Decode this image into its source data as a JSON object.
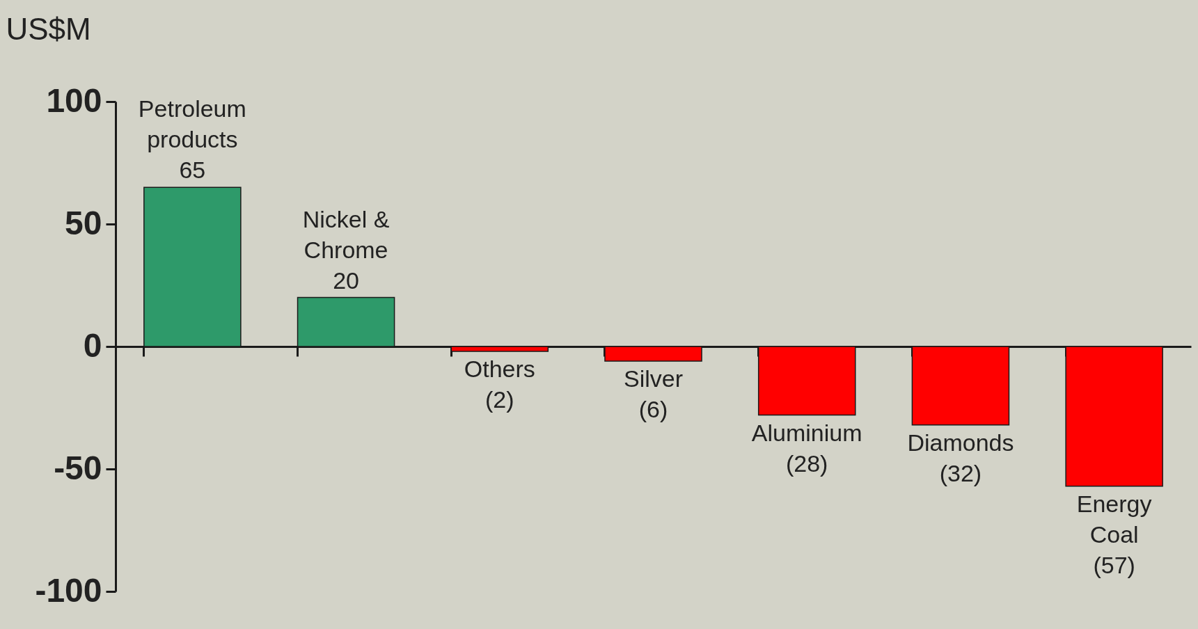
{
  "chart_data": {
    "type": "bar",
    "ylabel": "US$M",
    "categories": [
      "Petroleum products",
      "Nickel & Chrome",
      "Others",
      "Silver",
      "Aluminium",
      "Diamonds",
      "Energy Coal"
    ],
    "values": [
      65,
      20,
      -2,
      -6,
      -28,
      -32,
      -57
    ],
    "value_labels": [
      "65",
      "20",
      "(2)",
      "(6)",
      "(28)",
      "(32)",
      "(57)"
    ],
    "colors": [
      "#2e9a6a",
      "#2e9a6a",
      "#ff0000",
      "#ff0000",
      "#ff0000",
      "#ff0000",
      "#ff0000"
    ],
    "ylim": [
      -100,
      100
    ],
    "yticks": [
      -100,
      -50,
      0,
      50,
      100
    ],
    "tick_labels": "y"
  }
}
